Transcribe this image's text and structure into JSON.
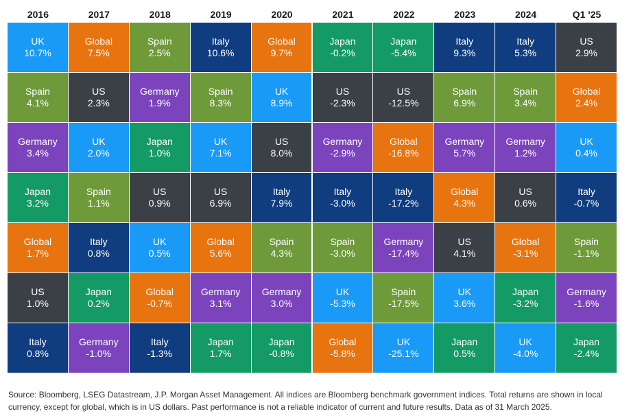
{
  "colors": {
    "UK": "#1a9af7",
    "Global": "#e8740f",
    "Spain": "#6e9a3a",
    "Italy": "#103d80",
    "Japan": "#149a64",
    "US": "#3b4046",
    "Germany": "#7b44bd"
  },
  "chart_data": {
    "type": "table",
    "title": "",
    "columns": [
      {
        "year": "2016",
        "cells": [
          {
            "country": "UK",
            "value": "10.7%"
          },
          {
            "country": "Spain",
            "value": "4.1%"
          },
          {
            "country": "Germany",
            "value": "3.4%"
          },
          {
            "country": "Japan",
            "value": "3.2%"
          },
          {
            "country": "Global",
            "value": "1.7%"
          },
          {
            "country": "US",
            "value": "1.0%"
          },
          {
            "country": "Italy",
            "value": "0.8%"
          }
        ]
      },
      {
        "year": "2017",
        "cells": [
          {
            "country": "Global",
            "value": "7.5%"
          },
          {
            "country": "US",
            "value": "2.3%"
          },
          {
            "country": "UK",
            "value": "2.0%"
          },
          {
            "country": "Spain",
            "value": "1.1%"
          },
          {
            "country": "Italy",
            "value": "0.8%"
          },
          {
            "country": "Japan",
            "value": "0.2%"
          },
          {
            "country": "Germany",
            "value": "-1.0%"
          }
        ]
      },
      {
        "year": "2018",
        "cells": [
          {
            "country": "Spain",
            "value": "2.5%"
          },
          {
            "country": "Germany",
            "value": "1.9%"
          },
          {
            "country": "Japan",
            "value": "1.0%"
          },
          {
            "country": "US",
            "value": "0.9%"
          },
          {
            "country": "UK",
            "value": "0.5%"
          },
          {
            "country": "Global",
            "value": "-0.7%"
          },
          {
            "country": "Italy",
            "value": "-1.3%"
          }
        ]
      },
      {
        "year": "2019",
        "cells": [
          {
            "country": "Italy",
            "value": "10.6%"
          },
          {
            "country": "Spain",
            "value": "8.3%"
          },
          {
            "country": "UK",
            "value": "7.1%"
          },
          {
            "country": "US",
            "value": "6.9%"
          },
          {
            "country": "Global",
            "value": "5.6%"
          },
          {
            "country": "Germany",
            "value": "3.1%"
          },
          {
            "country": "Japan",
            "value": "1.7%"
          }
        ]
      },
      {
        "year": "2020",
        "cells": [
          {
            "country": "Global",
            "value": "9.7%"
          },
          {
            "country": "UK",
            "value": "8.9%"
          },
          {
            "country": "US",
            "value": "8.0%"
          },
          {
            "country": "Italy",
            "value": "7.9%"
          },
          {
            "country": "Spain",
            "value": "4.3%"
          },
          {
            "country": "Germany",
            "value": "3.0%"
          },
          {
            "country": "Japan",
            "value": "-0.8%"
          }
        ]
      },
      {
        "year": "2021",
        "cells": [
          {
            "country": "Japan",
            "value": "-0.2%"
          },
          {
            "country": "US",
            "value": "-2.3%"
          },
          {
            "country": "Germany",
            "value": "-2.9%"
          },
          {
            "country": "Italy",
            "value": "-3.0%"
          },
          {
            "country": "Spain",
            "value": "-3.0%"
          },
          {
            "country": "UK",
            "value": "-5.3%"
          },
          {
            "country": "Global",
            "value": "-5.8%"
          }
        ]
      },
      {
        "year": "2022",
        "cells": [
          {
            "country": "Japan",
            "value": "-5.4%"
          },
          {
            "country": "US",
            "value": "-12.5%"
          },
          {
            "country": "Global",
            "value": "-16.8%"
          },
          {
            "country": "Italy",
            "value": "-17.2%"
          },
          {
            "country": "Germany",
            "value": "-17.4%"
          },
          {
            "country": "Spain",
            "value": "-17.5%"
          },
          {
            "country": "UK",
            "value": "-25.1%"
          }
        ]
      },
      {
        "year": "2023",
        "cells": [
          {
            "country": "Italy",
            "value": "9.3%"
          },
          {
            "country": "Spain",
            "value": "6.9%"
          },
          {
            "country": "Germany",
            "value": "5.7%"
          },
          {
            "country": "Global",
            "value": "4.3%"
          },
          {
            "country": "US",
            "value": "4.1%"
          },
          {
            "country": "UK",
            "value": "3.6%"
          },
          {
            "country": "Japan",
            "value": "0.5%"
          }
        ]
      },
      {
        "year": "2024",
        "cells": [
          {
            "country": "Italy",
            "value": "5.3%"
          },
          {
            "country": "Spain",
            "value": "3.4%"
          },
          {
            "country": "Germany",
            "value": "1.2%"
          },
          {
            "country": "US",
            "value": "0.6%"
          },
          {
            "country": "Global",
            "value": "-3.1%"
          },
          {
            "country": "Japan",
            "value": "-3.2%"
          },
          {
            "country": "UK",
            "value": "-4.0%"
          }
        ]
      },
      {
        "year": "Q1 '25",
        "cells": [
          {
            "country": "US",
            "value": "2.9%"
          },
          {
            "country": "Global",
            "value": "2.4%"
          },
          {
            "country": "UK",
            "value": "0.4%"
          },
          {
            "country": "Italy",
            "value": "-0.7%"
          },
          {
            "country": "Spain",
            "value": "-1.1%"
          },
          {
            "country": "Germany",
            "value": "-1.6%"
          },
          {
            "country": "Japan",
            "value": "-2.4%"
          }
        ]
      }
    ]
  },
  "footer": {
    "source": "Source: Bloomberg, LSEG Datastream, J.P. Morgan Asset Management. All indices are Bloomberg benchmark government indices. Total returns are shown in local currency, except for global, which is in US dollars. Past performance is not a reliable indicator of current and future results. Data as of 31 March 2025."
  }
}
